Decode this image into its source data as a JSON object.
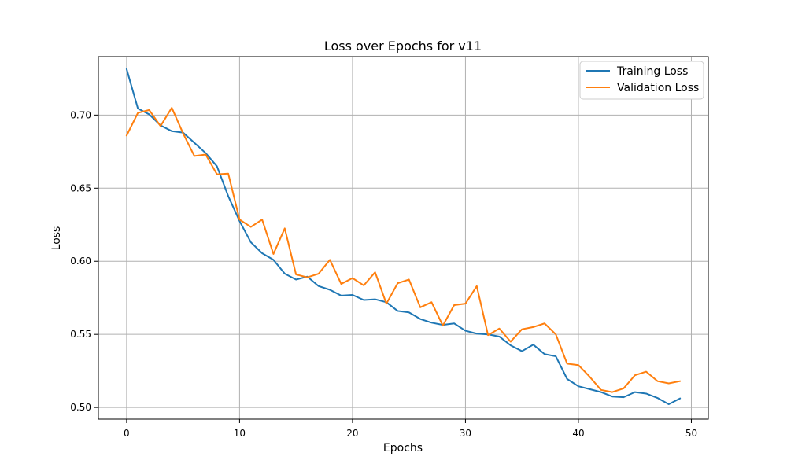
{
  "chart_data": {
    "type": "line",
    "title": "Loss over Epochs for v11",
    "xlabel": "Epochs",
    "ylabel": "Loss",
    "xlim": [
      -2.5,
      51.5
    ],
    "ylim": [
      0.492,
      0.74
    ],
    "grid": true,
    "legend_position": "top-right",
    "xticks": [
      0,
      10,
      20,
      30,
      40,
      50
    ],
    "yticks": [
      0.5,
      0.55,
      0.6,
      0.65,
      0.7
    ],
    "xtick_labels": [
      "0",
      "10",
      "20",
      "30",
      "40",
      "50"
    ],
    "ytick_labels": [
      "0.50",
      "0.55",
      "0.60",
      "0.65",
      "0.70"
    ],
    "x": [
      0,
      1,
      2,
      3,
      4,
      5,
      6,
      7,
      8,
      9,
      10,
      11,
      12,
      13,
      14,
      15,
      16,
      17,
      18,
      19,
      20,
      21,
      22,
      23,
      24,
      25,
      26,
      27,
      28,
      29,
      30,
      31,
      32,
      33,
      34,
      35,
      36,
      37,
      38,
      39,
      40,
      41,
      42,
      43,
      44,
      45,
      46,
      47,
      48,
      49
    ],
    "series": [
      {
        "name": "Training Loss",
        "color": "#1f77b4",
        "values": [
          0.7315,
          0.7045,
          0.7005,
          0.693,
          0.689,
          0.688,
          0.681,
          0.674,
          0.665,
          0.6445,
          0.6275,
          0.613,
          0.6055,
          0.601,
          0.5915,
          0.5875,
          0.5895,
          0.583,
          0.5805,
          0.5765,
          0.577,
          0.5735,
          0.574,
          0.572,
          0.566,
          0.565,
          0.5605,
          0.558,
          0.5565,
          0.5575,
          0.5525,
          0.5505,
          0.55,
          0.5485,
          0.5425,
          0.5385,
          0.543,
          0.5365,
          0.535,
          0.5195,
          0.5145,
          0.5125,
          0.5105,
          0.5075,
          0.507,
          0.5105,
          0.5095,
          0.5065,
          0.5022,
          0.5062
        ]
      },
      {
        "name": "Validation Loss",
        "color": "#ff7f0e",
        "values": [
          0.686,
          0.7015,
          0.7035,
          0.6925,
          0.705,
          0.6875,
          0.672,
          0.673,
          0.6595,
          0.66,
          0.6285,
          0.6235,
          0.6285,
          0.605,
          0.6225,
          0.591,
          0.589,
          0.5915,
          0.601,
          0.5845,
          0.5885,
          0.5835,
          0.5925,
          0.571,
          0.585,
          0.5875,
          0.5685,
          0.572,
          0.556,
          0.57,
          0.571,
          0.583,
          0.5495,
          0.554,
          0.545,
          0.5535,
          0.555,
          0.5575,
          0.55,
          0.53,
          0.529,
          0.521,
          0.512,
          0.5105,
          0.513,
          0.522,
          0.5245,
          0.518,
          0.5165,
          0.518
        ]
      }
    ]
  }
}
